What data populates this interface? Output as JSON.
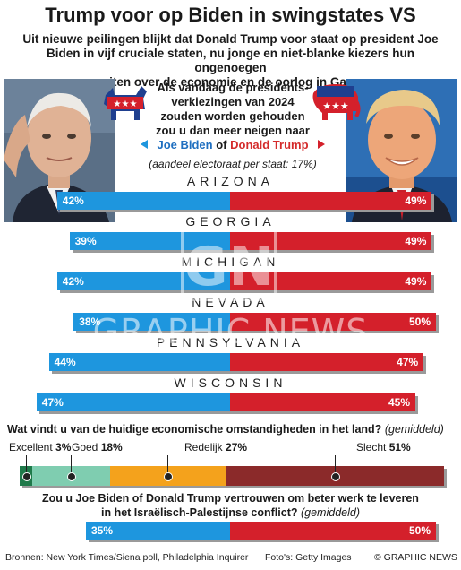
{
  "header": {
    "title": "Trump voor op Biden in swingstates VS",
    "subtitle_lines": [
      "Uit nieuwe peilingen blijkt dat Donald Trump voor staat op president Joe",
      "Biden in vijf cruciale staten, nu jonge en niet-blanke kiezers hun ongenoegen",
      "uiten over de economie en de oorlog in Gaza"
    ]
  },
  "question": {
    "lines": [
      "Als vandaag de presidents-",
      "verkiezingen van 2024",
      "zouden worden gehouden",
      "zou u dan meer neigen naar"
    ],
    "biden": "Joe Biden",
    "connector": "of",
    "trump": "Donald Trump",
    "note": "(aandeel electoraat per staat: 17%)"
  },
  "colors": {
    "biden_blue": "#1e96de",
    "trump_red": "#d4202b",
    "excellent": "#1f7a4a",
    "good": "#7fcdb0",
    "fair": "#f4a21c",
    "poor": "#8b2a2a"
  },
  "icons": [
    "democratic-donkey-icon",
    "republican-elephant-icon"
  ],
  "chart_data": [
    {
      "type": "bar",
      "categories": [
        "ARIZONA",
        "GEORGIA",
        "MICHIGAN",
        "NEVADA",
        "PENNSYLVANIA",
        "WISCONSIN"
      ],
      "series": [
        {
          "name": "Joe Biden",
          "values": [
            42,
            39,
            42,
            38,
            44,
            47
          ]
        },
        {
          "name": "Donald Trump",
          "values": [
            49,
            49,
            49,
            50,
            47,
            45
          ]
        }
      ],
      "value_suffix": "%"
    },
    {
      "type": "bar",
      "title": "Wat vindt u van de huidige economische omstandigheden in het land?",
      "note": "(gemiddeld)",
      "categories": [
        "Excellent",
        "Goed",
        "Redelijk",
        "Slecht"
      ],
      "values": [
        3,
        18,
        27,
        51
      ],
      "value_suffix": "%"
    },
    {
      "type": "bar",
      "title_lines": [
        "Zou u Joe Biden of Donald Trump vertrouwen om beter werk te leveren",
        "in het Israëlisch-Palestijnse conflict?"
      ],
      "note": "(gemiddeld)",
      "series": [
        {
          "name": "Joe Biden",
          "values": [
            35
          ]
        },
        {
          "name": "Donald Trump",
          "values": [
            50
          ]
        }
      ],
      "value_suffix": "%"
    }
  ],
  "footer": {
    "sources": "Bronnen: New York Times/Siena poll, Philadelphia Inquirer",
    "photos": "Foto's: Getty Images",
    "credit": "© GRAPHIC NEWS"
  },
  "watermark": {
    "text": "GRAPHIC NEWS",
    "monogram": "GN"
  }
}
